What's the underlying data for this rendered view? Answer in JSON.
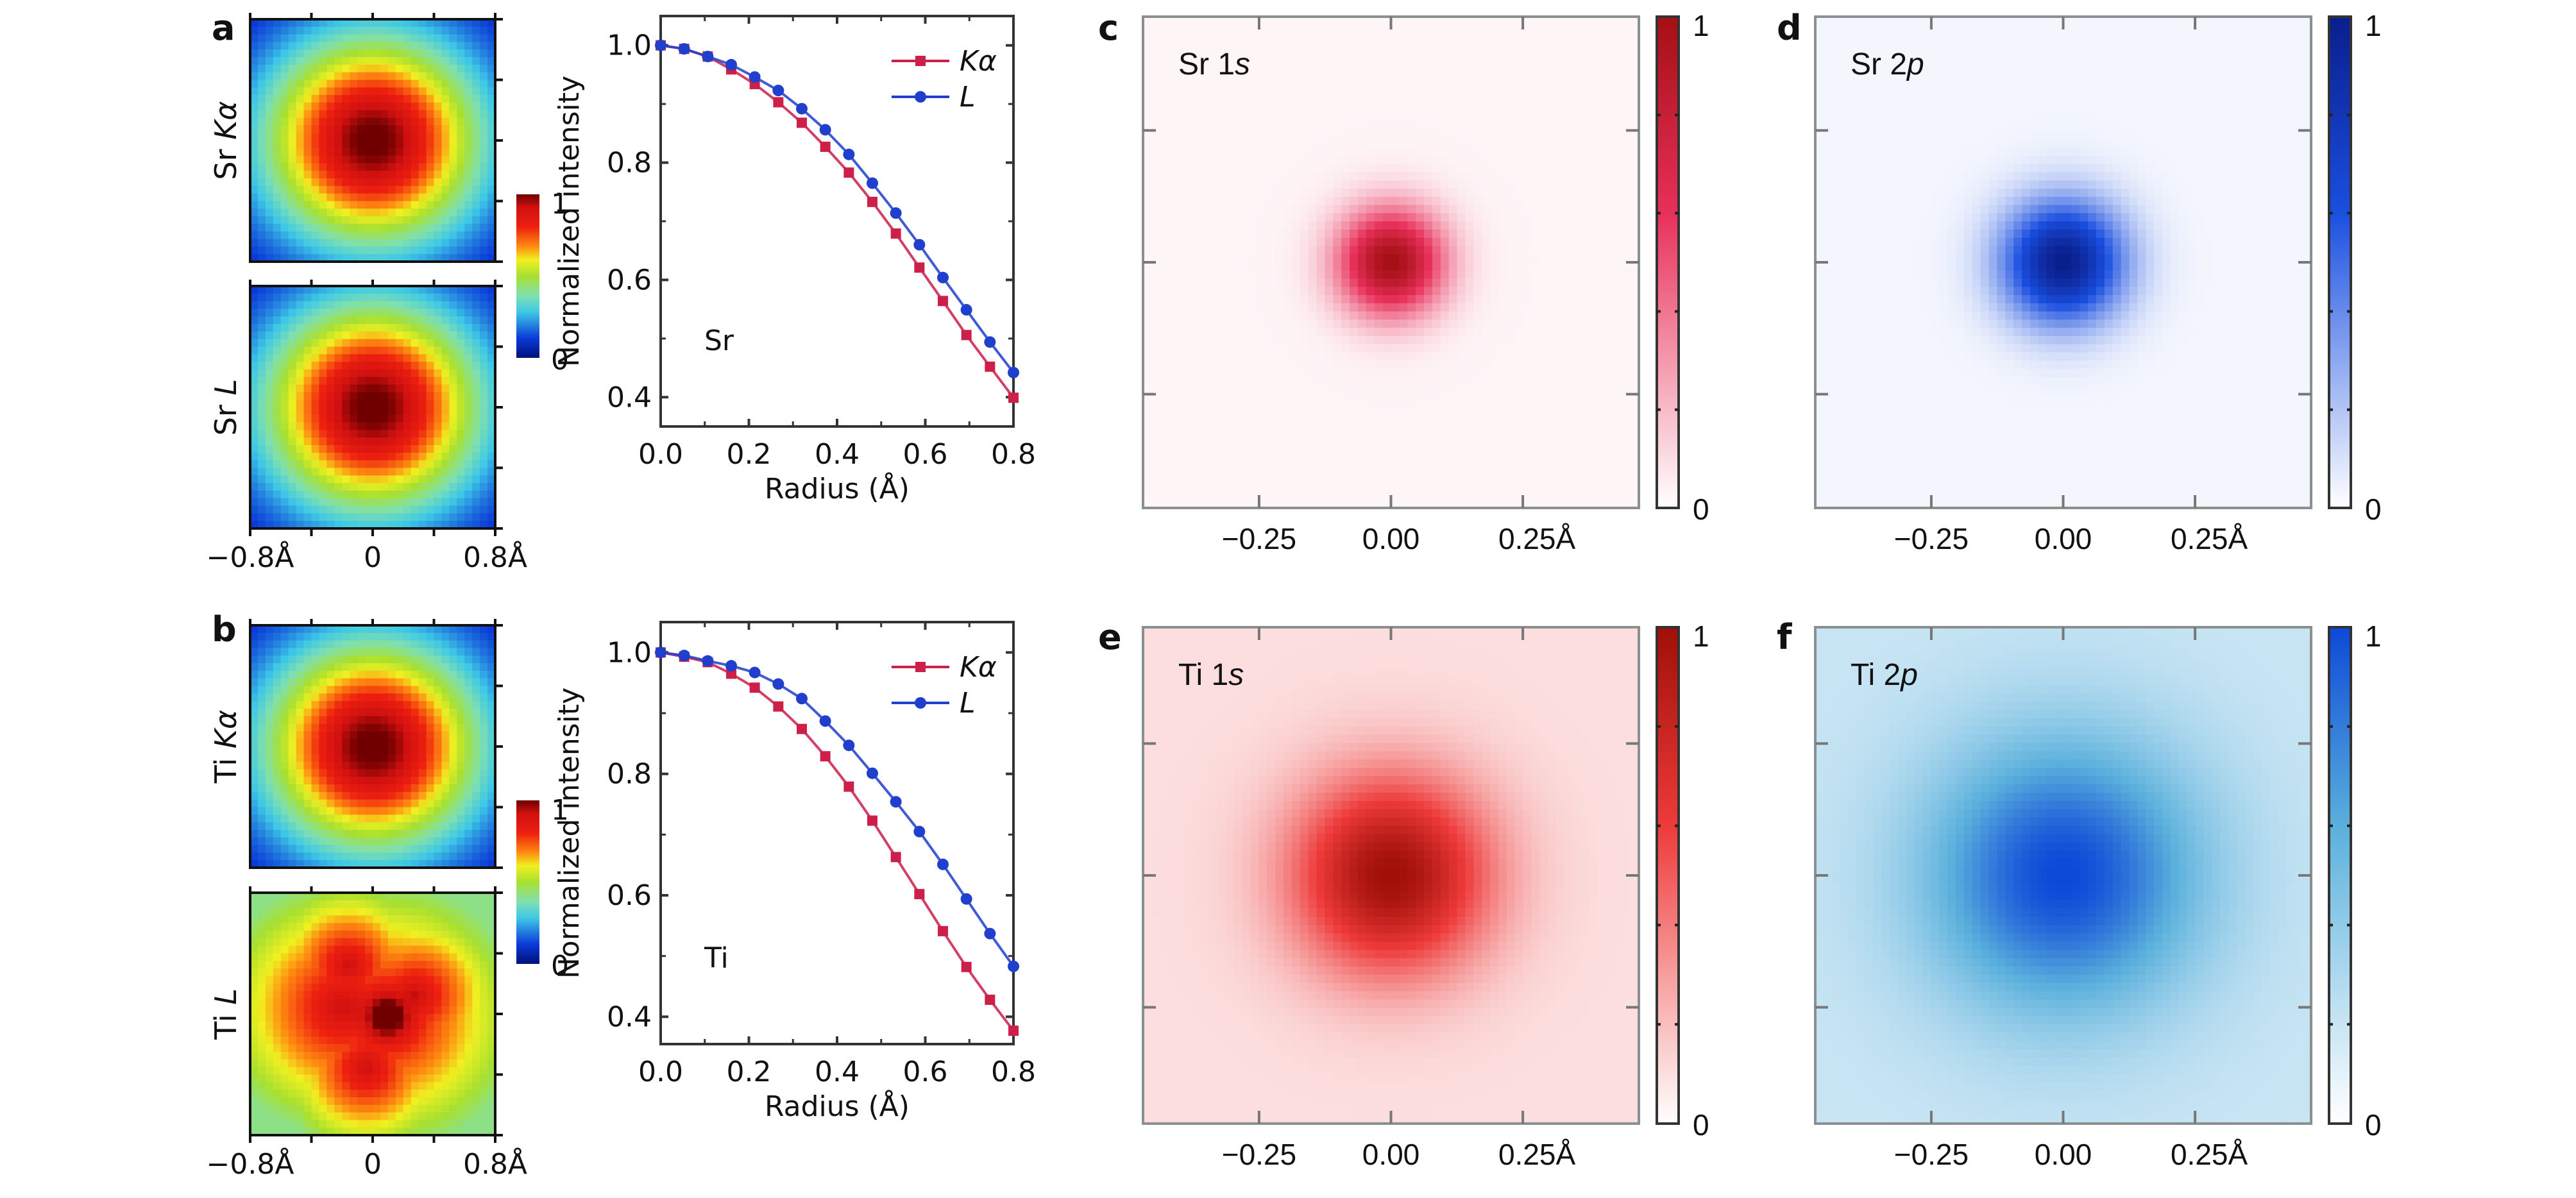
{
  "figure": {
    "panels": {
      "a": {
        "letter": "a"
      },
      "b": {
        "letter": "b"
      },
      "c": {
        "letter": "c"
      },
      "d": {
        "letter": "d"
      },
      "e": {
        "letter": "e"
      },
      "f": {
        "letter": "f"
      }
    }
  },
  "chart_data": [
    {
      "id": "a-maps",
      "type": "heatmap",
      "panel": "a",
      "maps": [
        {
          "row_label": "Sr Kα",
          "element": "Sr",
          "line": "Kα",
          "peak": [
            0.0,
            0.0
          ],
          "shape": "round"
        },
        {
          "row_label": "Sr L",
          "element": "Sr",
          "line": "L",
          "peak": [
            0.0,
            0.0
          ],
          "shape": "round"
        }
      ],
      "colormap": "jet",
      "colorbar": {
        "min_label": "0",
        "max_label": "1",
        "range": [
          0,
          1
        ]
      },
      "x_tick_labels": [
        "−0.8Å",
        "0",
        "0.8Å"
      ],
      "xlim": [
        -0.8,
        0.8
      ],
      "ylim": [
        -0.8,
        0.8
      ]
    },
    {
      "id": "b-maps",
      "type": "heatmap",
      "panel": "b",
      "maps": [
        {
          "row_label": "Ti Kα",
          "element": "Ti",
          "line": "Kα",
          "peak": [
            0.0,
            0.0
          ],
          "shape": "round"
        },
        {
          "row_label": "Ti L",
          "element": "Ti",
          "line": "L",
          "peak": [
            0.1,
            -0.1
          ],
          "shape": "irregular"
        }
      ],
      "colormap": "jet",
      "colorbar": {
        "min_label": "0",
        "max_label": "1",
        "range": [
          0,
          1
        ]
      },
      "x_tick_labels": [
        "−0.8Å",
        "0",
        "0.8Å"
      ],
      "xlim": [
        -0.8,
        0.8
      ],
      "ylim": [
        -0.8,
        0.8
      ]
    },
    {
      "id": "a-profile",
      "type": "line",
      "panel": "a",
      "annotation": "Sr",
      "xlabel": "Radius (Å)",
      "ylabel": "Normalized intensity",
      "xlim": [
        0.0,
        0.8
      ],
      "ylim": [
        0.35,
        1.05
      ],
      "x_ticks": [
        "0.0",
        "0.2",
        "0.4",
        "0.6",
        "0.8"
      ],
      "y_ticks": [
        "0.4",
        "0.6",
        "0.8",
        "1.0"
      ],
      "legend_position": "top-right",
      "x": [
        0.0,
        0.0533,
        0.1067,
        0.16,
        0.2133,
        0.2667,
        0.32,
        0.3733,
        0.4267,
        0.48,
        0.5333,
        0.5867,
        0.64,
        0.6933,
        0.7467,
        0.8
      ],
      "series": [
        {
          "name": "Kα",
          "color": "#cc1f4a",
          "marker": "square",
          "values": [
            1.0,
            0.994,
            0.981,
            0.959,
            0.934,
            0.903,
            0.868,
            0.827,
            0.783,
            0.733,
            0.679,
            0.621,
            0.564,
            0.506,
            0.452,
            0.399
          ]
        },
        {
          "name": "L",
          "color": "#1f3fcc",
          "marker": "circle",
          "values": [
            1.0,
            0.994,
            0.981,
            0.967,
            0.946,
            0.923,
            0.892,
            0.856,
            0.814,
            0.765,
            0.714,
            0.66,
            0.604,
            0.549,
            0.494,
            0.442
          ]
        }
      ]
    },
    {
      "id": "b-profile",
      "type": "line",
      "panel": "b",
      "annotation": "Ti",
      "xlabel": "Radius (Å)",
      "ylabel": "Normalized intensity",
      "xlim": [
        0.0,
        0.8
      ],
      "ylim": [
        0.355,
        1.05
      ],
      "x_ticks": [
        "0.0",
        "0.2",
        "0.4",
        "0.6",
        "0.8"
      ],
      "y_ticks": [
        "0.4",
        "0.6",
        "0.8",
        "1.0"
      ],
      "legend_position": "top-right",
      "x": [
        0.0,
        0.0533,
        0.1067,
        0.16,
        0.2133,
        0.2667,
        0.32,
        0.3733,
        0.4267,
        0.48,
        0.5333,
        0.5867,
        0.64,
        0.6933,
        0.7467,
        0.8
      ],
      "series": [
        {
          "name": "Kα",
          "color": "#cc1f4a",
          "marker": "square",
          "values": [
            1.0,
            0.993,
            0.984,
            0.965,
            0.942,
            0.911,
            0.874,
            0.829,
            0.779,
            0.723,
            0.663,
            0.602,
            0.541,
            0.482,
            0.428,
            0.377
          ]
        },
        {
          "name": "L",
          "color": "#1f3fcc",
          "marker": "circle",
          "values": [
            1.0,
            0.995,
            0.986,
            0.978,
            0.967,
            0.948,
            0.924,
            0.887,
            0.847,
            0.801,
            0.754,
            0.705,
            0.651,
            0.594,
            0.537,
            0.483
          ]
        }
      ]
    },
    {
      "id": "c-map",
      "type": "heatmap",
      "panel": "c",
      "label": "Sr 1s",
      "label_main": "Sr 1",
      "label_italic": "s",
      "color_low": "#ffffff",
      "color_high": "#a50f15",
      "color_mid": "#e8305a",
      "spread": 0.07,
      "background": 0.03,
      "x_tick_labels": [
        "−0.25",
        "0.00",
        "0.25Å"
      ],
      "colorbar": {
        "min_label": "0",
        "max_label": "1",
        "range": [
          0,
          1
        ]
      }
    },
    {
      "id": "d-map",
      "type": "heatmap",
      "panel": "d",
      "label": "Sr 2p",
      "label_main": "Sr 2",
      "label_italic": "p",
      "color_low": "#ffffff",
      "color_high": "#0a1e8c",
      "color_mid": "#1a4fe0",
      "spread": 0.08,
      "background": 0.03,
      "x_tick_labels": [
        "−0.25",
        "0.00",
        "0.25Å"
      ],
      "colorbar": {
        "min_label": "0",
        "max_label": "1",
        "range": [
          0,
          1
        ]
      }
    },
    {
      "id": "e-map",
      "type": "heatmap",
      "panel": "e",
      "label": "Ti 1s",
      "label_main": "Ti 1",
      "label_italic": "s",
      "color_low": "#ffffff",
      "color_high": "#a01008",
      "color_mid": "#ee3a3a",
      "spread": 0.13,
      "background": 0.1,
      "x_tick_labels": [
        "−0.25",
        "0.00",
        "0.25Å"
      ],
      "colorbar": {
        "min_label": "0",
        "max_label": "1",
        "range": [
          0,
          1
        ]
      }
    },
    {
      "id": "f-map",
      "type": "heatmap",
      "panel": "f",
      "label": "Ti 2p",
      "label_main": "Ti 2",
      "label_italic": "p",
      "color_low": "#ffffff",
      "color_high": "#0d48d8",
      "color_mid": "#5ab0dc",
      "spread": 0.18,
      "background": 0.2,
      "x_tick_labels": [
        "−0.25",
        "0.00",
        "0.25Å"
      ],
      "colorbar": {
        "min_label": "0",
        "max_label": "1",
        "range": [
          0,
          1
        ]
      }
    }
  ]
}
